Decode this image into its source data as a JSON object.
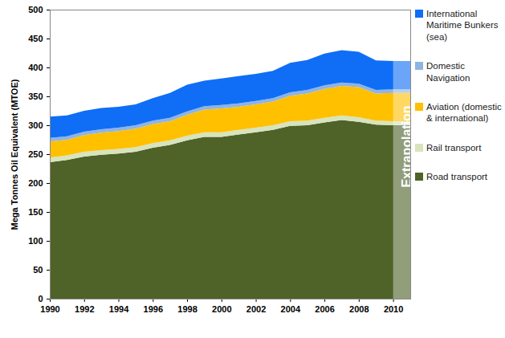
{
  "chart_data": {
    "type": "area",
    "stacked": true,
    "legend": "right",
    "grid": false,
    "y_label": "Mega Tonnes Oil Equivalent (MTOE)",
    "x": [
      1990,
      1991,
      1992,
      1993,
      1994,
      1995,
      1996,
      1997,
      1998,
      1999,
      2000,
      2001,
      2002,
      2003,
      2004,
      2005,
      2006,
      2007,
      2008,
      2009,
      2010,
      2011
    ],
    "xlim": [
      1990,
      2011
    ],
    "xticks": [
      1990,
      1992,
      1994,
      1996,
      1998,
      2000,
      2002,
      2004,
      2006,
      2008,
      2010
    ],
    "ylim": [
      0,
      500
    ],
    "yticks": [
      0,
      50,
      100,
      150,
      200,
      250,
      300,
      350,
      400,
      450,
      500
    ],
    "series": [
      {
        "name": "Road transport",
        "color": "#4f6228",
        "values": [
          236,
          240,
          246,
          249,
          251,
          254,
          261,
          266,
          274,
          280,
          280,
          284,
          288,
          292,
          299,
          300,
          305,
          309,
          306,
          301,
          300,
          300
        ]
      },
      {
        "name": "Rail transport",
        "color": "#d7e4bd",
        "values": [
          8,
          8,
          8,
          8,
          8,
          8,
          8,
          8,
          8,
          8,
          8,
          8,
          8,
          8,
          8,
          8,
          8,
          8,
          8,
          7,
          7,
          7
        ]
      },
      {
        "name": "Aviation (domestic & international)",
        "color": "#ffc000",
        "values": [
          28,
          27,
          29,
          30,
          31,
          32,
          33,
          33,
          36,
          39,
          41,
          40,
          40,
          41,
          44,
          47,
          50,
          51,
          52,
          47,
          49,
          49
        ]
      },
      {
        "name": "Domestic Navigation",
        "color": "#8eb4e3",
        "values": [
          6,
          6,
          6,
          6,
          6,
          6,
          6,
          6,
          6,
          6,
          6,
          6,
          6,
          6,
          6,
          6,
          6,
          6,
          6,
          6,
          6,
          6
        ]
      },
      {
        "name": "International Maritime Bunkers (sea)",
        "color": "#0f6ef5",
        "values": [
          37,
          36,
          36,
          37,
          36,
          36,
          39,
          43,
          46,
          44,
          46,
          47,
          47,
          47,
          51,
          52,
          55,
          56,
          55,
          51,
          49,
          49
        ]
      }
    ],
    "annotations": [
      {
        "text": "Extrapolation",
        "x": [
          2010,
          2011
        ]
      }
    ]
  }
}
